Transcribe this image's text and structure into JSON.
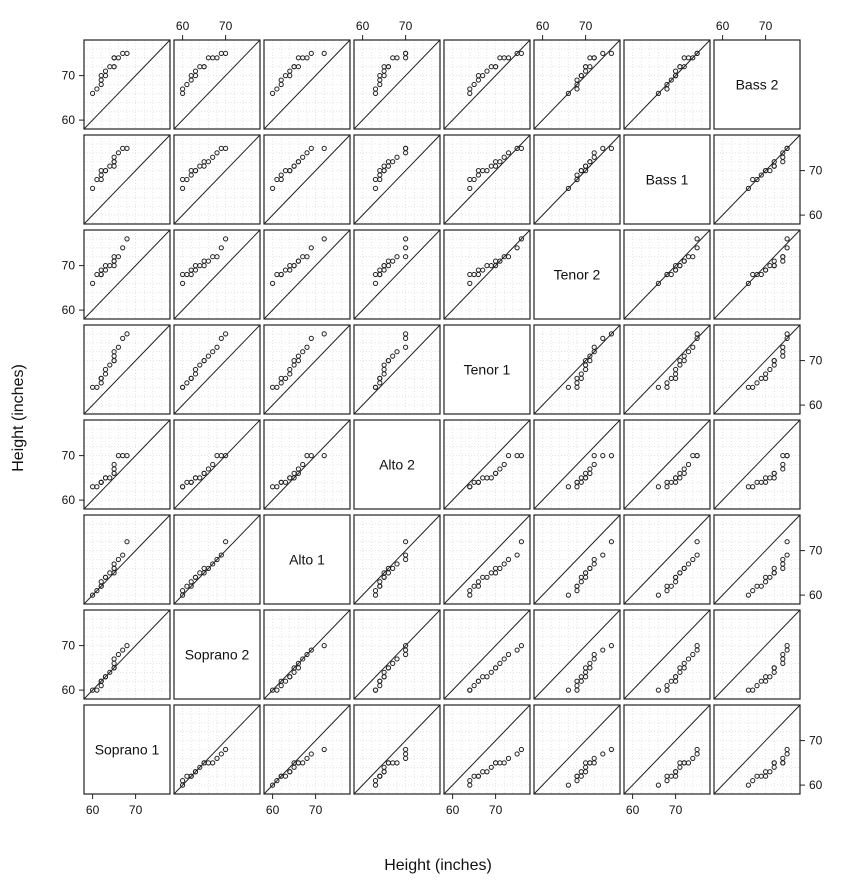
{
  "chart_data": {
    "type": "scatter",
    "subtype": "quantile-quantile scatterplot matrix",
    "xlabel": "Height (inches)",
    "ylabel": "Height (inches)",
    "xlim": [
      58,
      78
    ],
    "ylim": [
      58,
      78
    ],
    "ticks": [
      60,
      70
    ],
    "tick_labels": [
      "60",
      "70"
    ],
    "grid": true,
    "reference_line": "y = x",
    "colors": {
      "frame": "#222222",
      "grid": "#d6d6d6",
      "point": "#222222"
    },
    "diagonal_labels": [
      "Soprano 1",
      "Soprano 2",
      "Alto 1",
      "Alto 2",
      "Tenor 1",
      "Tenor 2",
      "Bass 1",
      "Bass 2"
    ],
    "groups": [
      {
        "name": "Soprano 1",
        "quantiles": [
          60,
          61,
          62,
          62,
          62,
          63,
          63,
          64,
          65,
          65,
          65,
          65,
          66,
          67,
          68
        ]
      },
      {
        "name": "Soprano 2",
        "quantiles": [
          60,
          60,
          61,
          62,
          62,
          63,
          63,
          64,
          65,
          65,
          66,
          67,
          68,
          69,
          70
        ]
      },
      {
        "name": "Alto 1",
        "quantiles": [
          60,
          61,
          62,
          62,
          63,
          64,
          64,
          65,
          65,
          66,
          66,
          67,
          68,
          69,
          72
        ]
      },
      {
        "name": "Alto 2",
        "quantiles": [
          63,
          63,
          64,
          64,
          64,
          65,
          65,
          65,
          66,
          66,
          67,
          68,
          70,
          70,
          70
        ]
      },
      {
        "name": "Tenor 1",
        "quantiles": [
          64,
          64,
          65,
          66,
          66,
          67,
          68,
          69,
          70,
          70,
          71,
          72,
          73,
          75,
          76
        ]
      },
      {
        "name": "Tenor 2",
        "quantiles": [
          66,
          68,
          68,
          68,
          69,
          69,
          70,
          70,
          70,
          71,
          71,
          72,
          72,
          74,
          76
        ]
      },
      {
        "name": "Bass 1",
        "quantiles": [
          66,
          68,
          68,
          69,
          70,
          70,
          70,
          71,
          71,
          72,
          72,
          73,
          74,
          75,
          75
        ]
      },
      {
        "name": "Bass 2",
        "quantiles": [
          66,
          67,
          68,
          69,
          70,
          70,
          71,
          72,
          72,
          72,
          74,
          74,
          74,
          75,
          75
        ]
      }
    ]
  }
}
